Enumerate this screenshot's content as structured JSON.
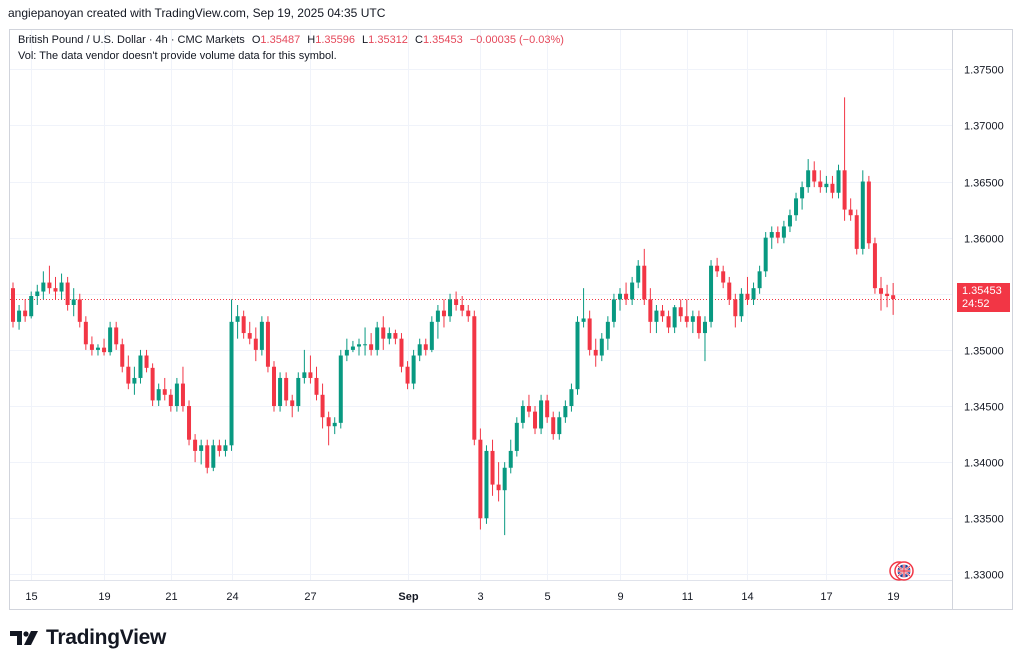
{
  "header": {
    "created_by": "angiepanoyan created with TradingView.com, Sep 19, 2025 04:35 UTC"
  },
  "legend": {
    "symbol": "British Pound / U.S. Dollar · 4h · CMC Markets",
    "open_label": "O",
    "open": "1.35487",
    "high_label": "H",
    "high": "1.35596",
    "low_label": "L",
    "low": "1.35312",
    "close_label": "C",
    "close": "1.35453",
    "change": "−0.00035 (−0.03%)",
    "vol_note": "Vol: The data vendor doesn't provide volume data for this symbol."
  },
  "price_tag": {
    "price": "1.35453",
    "countdown": "24:52"
  },
  "footer": {
    "brand": "TradingView"
  },
  "colors": {
    "up": "#089981",
    "down": "#f23645",
    "grid": "#f0f3fa",
    "text": "#131722"
  },
  "chart_data": {
    "type": "candlestick",
    "title": "British Pound / U.S. Dollar · 4h · CMC Markets",
    "ylim": [
      1.3295,
      1.3785
    ],
    "y_ticks": [
      "1.37500",
      "1.37000",
      "1.36500",
      "1.36000",
      "1.35500",
      "1.35000",
      "1.34500",
      "1.34000",
      "1.33500",
      "1.33000"
    ],
    "x_ticks": [
      {
        "label": "15",
        "index": 3
      },
      {
        "label": "19",
        "index": 15
      },
      {
        "label": "21",
        "index": 26
      },
      {
        "label": "24",
        "index": 36
      },
      {
        "label": "27",
        "index": 49
      },
      {
        "label": "Sep",
        "index": 65
      },
      {
        "label": "3",
        "index": 77
      },
      {
        "label": "5",
        "index": 88
      },
      {
        "label": "9",
        "index": 100
      },
      {
        "label": "11",
        "index": 111
      },
      {
        "label": "14",
        "index": 121
      },
      {
        "label": "17",
        "index": 134
      },
      {
        "label": "19",
        "index": 145
      }
    ],
    "current_price": 1.35453,
    "candles": [
      [
        1.3555,
        1.356,
        1.352,
        1.3525
      ],
      [
        1.3525,
        1.354,
        1.3518,
        1.3535
      ],
      [
        1.3535,
        1.3545,
        1.3525,
        1.353
      ],
      [
        1.353,
        1.3552,
        1.3528,
        1.3548
      ],
      [
        1.3548,
        1.3558,
        1.354,
        1.3552
      ],
      [
        1.3552,
        1.357,
        1.3545,
        1.356
      ],
      [
        1.356,
        1.3575,
        1.355,
        1.3555
      ],
      [
        1.3555,
        1.3565,
        1.3545,
        1.3552
      ],
      [
        1.3552,
        1.3568,
        1.3545,
        1.356
      ],
      [
        1.356,
        1.3565,
        1.3535,
        1.354
      ],
      [
        1.354,
        1.3555,
        1.353,
        1.3545
      ],
      [
        1.3545,
        1.355,
        1.352,
        1.3525
      ],
      [
        1.3525,
        1.353,
        1.35,
        1.3505
      ],
      [
        1.3505,
        1.3512,
        1.3495,
        1.35
      ],
      [
        1.35,
        1.3505,
        1.3495,
        1.3502
      ],
      [
        1.3502,
        1.351,
        1.3495,
        1.3498
      ],
      [
        1.3498,
        1.3525,
        1.3495,
        1.352
      ],
      [
        1.352,
        1.3525,
        1.35,
        1.3505
      ],
      [
        1.3505,
        1.351,
        1.348,
        1.3485
      ],
      [
        1.3485,
        1.3495,
        1.3465,
        1.347
      ],
      [
        1.347,
        1.3485,
        1.346,
        1.3475
      ],
      [
        1.3475,
        1.35,
        1.347,
        1.3495
      ],
      [
        1.3495,
        1.35,
        1.348,
        1.3484
      ],
      [
        1.3484,
        1.3488,
        1.345,
        1.3455
      ],
      [
        1.3455,
        1.347,
        1.345,
        1.3465
      ],
      [
        1.3465,
        1.3475,
        1.3455,
        1.346
      ],
      [
        1.346,
        1.3465,
        1.3445,
        1.345
      ],
      [
        1.345,
        1.3475,
        1.3445,
        1.347
      ],
      [
        1.347,
        1.3485,
        1.3445,
        1.345
      ],
      [
        1.345,
        1.3455,
        1.3415,
        1.342
      ],
      [
        1.342,
        1.3425,
        1.34,
        1.341
      ],
      [
        1.341,
        1.342,
        1.3398,
        1.3415
      ],
      [
        1.3415,
        1.342,
        1.339,
        1.3395
      ],
      [
        1.3395,
        1.342,
        1.3392,
        1.3415
      ],
      [
        1.3415,
        1.342,
        1.3405,
        1.341
      ],
      [
        1.341,
        1.342,
        1.3405,
        1.3415
      ],
      [
        1.3415,
        1.3545,
        1.341,
        1.3525
      ],
      [
        1.3525,
        1.354,
        1.351,
        1.353
      ],
      [
        1.353,
        1.3535,
        1.351,
        1.3515
      ],
      [
        1.3515,
        1.3525,
        1.3505,
        1.351
      ],
      [
        1.351,
        1.352,
        1.349,
        1.35
      ],
      [
        1.35,
        1.353,
        1.3495,
        1.3525
      ],
      [
        1.3525,
        1.353,
        1.348,
        1.3485
      ],
      [
        1.3485,
        1.349,
        1.3445,
        1.345
      ],
      [
        1.345,
        1.348,
        1.3445,
        1.3475
      ],
      [
        1.3475,
        1.348,
        1.345,
        1.3455
      ],
      [
        1.3455,
        1.346,
        1.344,
        1.345
      ],
      [
        1.345,
        1.348,
        1.3445,
        1.3475
      ],
      [
        1.3475,
        1.35,
        1.347,
        1.348
      ],
      [
        1.348,
        1.3495,
        1.347,
        1.3475
      ],
      [
        1.3475,
        1.3485,
        1.3455,
        1.346
      ],
      [
        1.346,
        1.347,
        1.343,
        1.344
      ],
      [
        1.344,
        1.3445,
        1.3415,
        1.3432
      ],
      [
        1.3432,
        1.344,
        1.3425,
        1.3435
      ],
      [
        1.3435,
        1.35,
        1.343,
        1.3495
      ],
      [
        1.3495,
        1.351,
        1.349,
        1.35
      ],
      [
        1.35,
        1.3508,
        1.3498,
        1.3503
      ],
      [
        1.3503,
        1.351,
        1.3495,
        1.3505
      ],
      [
        1.3505,
        1.352,
        1.3495,
        1.3505
      ],
      [
        1.3505,
        1.3515,
        1.3495,
        1.35
      ],
      [
        1.35,
        1.3525,
        1.3495,
        1.352
      ],
      [
        1.352,
        1.353,
        1.35,
        1.351
      ],
      [
        1.351,
        1.352,
        1.3505,
        1.3515
      ],
      [
        1.3515,
        1.3518,
        1.3505,
        1.351
      ],
      [
        1.351,
        1.3515,
        1.348,
        1.3485
      ],
      [
        1.3485,
        1.349,
        1.3465,
        1.347
      ],
      [
        1.347,
        1.35,
        1.3465,
        1.3495
      ],
      [
        1.3495,
        1.351,
        1.349,
        1.3505
      ],
      [
        1.3505,
        1.351,
        1.3495,
        1.35
      ],
      [
        1.35,
        1.353,
        1.3498,
        1.3525
      ],
      [
        1.3525,
        1.354,
        1.351,
        1.3535
      ],
      [
        1.3535,
        1.3545,
        1.352,
        1.353
      ],
      [
        1.353,
        1.355,
        1.3525,
        1.3545
      ],
      [
        1.3545,
        1.3552,
        1.3535,
        1.354
      ],
      [
        1.354,
        1.3548,
        1.353,
        1.3535
      ],
      [
        1.3535,
        1.354,
        1.3525,
        1.353
      ],
      [
        1.353,
        1.3535,
        1.3415,
        1.342
      ],
      [
        1.342,
        1.343,
        1.334,
        1.335
      ],
      [
        1.335,
        1.3415,
        1.3345,
        1.341
      ],
      [
        1.341,
        1.342,
        1.337,
        1.338
      ],
      [
        1.338,
        1.34,
        1.3365,
        1.3375
      ],
      [
        1.3375,
        1.34,
        1.3335,
        1.3395
      ],
      [
        1.3395,
        1.342,
        1.339,
        1.341
      ],
      [
        1.341,
        1.344,
        1.3405,
        1.3435
      ],
      [
        1.3435,
        1.3455,
        1.343,
        1.345
      ],
      [
        1.345,
        1.346,
        1.344,
        1.3445
      ],
      [
        1.3445,
        1.345,
        1.3425,
        1.343
      ],
      [
        1.343,
        1.346,
        1.3425,
        1.3455
      ],
      [
        1.3455,
        1.346,
        1.3435,
        1.344
      ],
      [
        1.344,
        1.3445,
        1.342,
        1.3425
      ],
      [
        1.3425,
        1.3445,
        1.342,
        1.344
      ],
      [
        1.344,
        1.3455,
        1.3435,
        1.345
      ],
      [
        1.345,
        1.347,
        1.3445,
        1.3465
      ],
      [
        1.3465,
        1.353,
        1.346,
        1.3525
      ],
      [
        1.3525,
        1.3555,
        1.352,
        1.3528
      ],
      [
        1.3528,
        1.3535,
        1.3495,
        1.35
      ],
      [
        1.35,
        1.351,
        1.3485,
        1.3495
      ],
      [
        1.3495,
        1.3515,
        1.349,
        1.351
      ],
      [
        1.351,
        1.353,
        1.35,
        1.3525
      ],
      [
        1.3525,
        1.355,
        1.352,
        1.3545
      ],
      [
        1.3545,
        1.3555,
        1.3535,
        1.355
      ],
      [
        1.355,
        1.356,
        1.354,
        1.3545
      ],
      [
        1.3545,
        1.3565,
        1.354,
        1.356
      ],
      [
        1.356,
        1.358,
        1.3555,
        1.3575
      ],
      [
        1.3575,
        1.359,
        1.354,
        1.3545
      ],
      [
        1.3545,
        1.3555,
        1.3515,
        1.3525
      ],
      [
        1.3525,
        1.354,
        1.3515,
        1.3535
      ],
      [
        1.3535,
        1.354,
        1.3525,
        1.353
      ],
      [
        1.353,
        1.3535,
        1.3515,
        1.352
      ],
      [
        1.352,
        1.354,
        1.3515,
        1.3538
      ],
      [
        1.3538,
        1.3545,
        1.3525,
        1.353
      ],
      [
        1.353,
        1.3545,
        1.352,
        1.3525
      ],
      [
        1.3525,
        1.3535,
        1.3515,
        1.353
      ],
      [
        1.353,
        1.3535,
        1.351,
        1.3515
      ],
      [
        1.3515,
        1.353,
        1.349,
        1.3525
      ],
      [
        1.3525,
        1.358,
        1.352,
        1.3575
      ],
      [
        1.3575,
        1.3582,
        1.3565,
        1.357
      ],
      [
        1.357,
        1.3575,
        1.3555,
        1.356
      ],
      [
        1.356,
        1.3565,
        1.354,
        1.3545
      ],
      [
        1.3545,
        1.355,
        1.352,
        1.353
      ],
      [
        1.353,
        1.3555,
        1.3525,
        1.355
      ],
      [
        1.355,
        1.3565,
        1.354,
        1.3545
      ],
      [
        1.3545,
        1.356,
        1.354,
        1.3555
      ],
      [
        1.3555,
        1.3575,
        1.355,
        1.357
      ],
      [
        1.357,
        1.3605,
        1.3565,
        1.36
      ],
      [
        1.36,
        1.361,
        1.359,
        1.3605
      ],
      [
        1.3605,
        1.361,
        1.3595,
        1.36
      ],
      [
        1.36,
        1.3615,
        1.3595,
        1.361
      ],
      [
        1.361,
        1.3625,
        1.3605,
        1.362
      ],
      [
        1.362,
        1.364,
        1.3615,
        1.3635
      ],
      [
        1.3635,
        1.365,
        1.3625,
        1.3645
      ],
      [
        1.3645,
        1.367,
        1.364,
        1.366
      ],
      [
        1.366,
        1.3668,
        1.3645,
        1.365
      ],
      [
        1.365,
        1.366,
        1.364,
        1.3645
      ],
      [
        1.3645,
        1.3655,
        1.364,
        1.3648
      ],
      [
        1.3648,
        1.3655,
        1.3635,
        1.364
      ],
      [
        1.364,
        1.3665,
        1.3635,
        1.366
      ],
      [
        1.366,
        1.3725,
        1.3615,
        1.3625
      ],
      [
        1.3625,
        1.3635,
        1.3615,
        1.362
      ],
      [
        1.362,
        1.3625,
        1.3585,
        1.359
      ],
      [
        1.359,
        1.366,
        1.3585,
        1.365
      ],
      [
        1.365,
        1.3655,
        1.359,
        1.3595
      ],
      [
        1.3595,
        1.36,
        1.355,
        1.3555
      ],
      [
        1.3555,
        1.3565,
        1.3535,
        1.355
      ],
      [
        1.355,
        1.3558,
        1.3538,
        1.3548
      ],
      [
        1.35487,
        1.35596,
        1.35312,
        1.35453
      ]
    ]
  }
}
